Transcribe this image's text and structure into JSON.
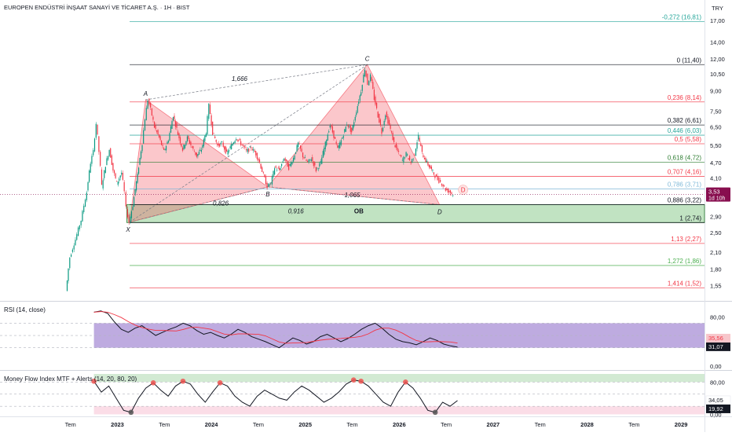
{
  "header": {
    "title": "EUROPEN ENDÜSTRİ İNŞAAT SANAYİ VE TİCARET A.Ş. · 1H · BIST",
    "currency": "TRY"
  },
  "chart_data": [
    {
      "type": "candlestick",
      "scale": "log",
      "ylim": [
        1.4,
        18.5
      ],
      "y_ticks": [
        "17,00",
        "14,00",
        "12,00",
        "10,50",
        "9,00",
        "7,50",
        "6,50",
        "5,50",
        "4,70",
        "4,10",
        "3,50",
        "2,90",
        "2,50",
        "2,10",
        "1,80",
        "1,55"
      ],
      "y_tick_values": [
        17.0,
        14.0,
        12.0,
        10.5,
        9.0,
        7.5,
        6.5,
        5.5,
        4.7,
        4.1,
        3.5,
        2.9,
        2.5,
        2.1,
        1.8,
        1.55
      ],
      "x_ticks": [
        "Tem",
        "2023",
        "Tem",
        "2024",
        "Tem",
        "2025",
        "Tem",
        "2026",
        "Tem",
        "2027",
        "Tem",
        "2028",
        "Tem",
        "2029"
      ],
      "x_tick_values": [
        2022.5,
        2023.0,
        2023.5,
        2024.0,
        2024.5,
        2025.0,
        2025.5,
        2026.0,
        2026.5,
        2027.0,
        2027.5,
        2028.0,
        2028.5,
        2029.0
      ],
      "last_price": "3,53",
      "last_price_value": 3.53,
      "countdown": "1d 10h",
      "price_path": [
        [
          2022.46,
          1.48
        ],
        [
          2022.47,
          1.62
        ],
        [
          2022.5,
          2.0
        ],
        [
          2022.56,
          2.35
        ],
        [
          2022.62,
          2.8
        ],
        [
          2022.68,
          3.6
        ],
        [
          2022.72,
          4.7
        ],
        [
          2022.75,
          5.2
        ],
        [
          2022.78,
          6.7
        ],
        [
          2022.81,
          5.2
        ],
        [
          2022.84,
          3.8
        ],
        [
          2022.88,
          4.6
        ],
        [
          2022.92,
          5.3
        ],
        [
          2022.96,
          4.4
        ],
        [
          2023.0,
          3.9
        ],
        [
          2023.05,
          4.3
        ],
        [
          2023.08,
          3.6
        ],
        [
          2023.1,
          3.1
        ],
        [
          2023.13,
          2.75
        ],
        [
          2023.17,
          3.2
        ],
        [
          2023.22,
          4.2
        ],
        [
          2023.27,
          5.6
        ],
        [
          2023.3,
          7.0
        ],
        [
          2023.33,
          8.3
        ],
        [
          2023.36,
          7.6
        ],
        [
          2023.4,
          6.5
        ],
        [
          2023.45,
          5.9
        ],
        [
          2023.5,
          5.2
        ],
        [
          2023.55,
          5.8
        ],
        [
          2023.6,
          7.2
        ],
        [
          2023.65,
          6.1
        ],
        [
          2023.7,
          5.3
        ],
        [
          2023.75,
          5.9
        ],
        [
          2023.8,
          5.4
        ],
        [
          2023.85,
          5.0
        ],
        [
          2023.9,
          5.3
        ],
        [
          2023.95,
          6.2
        ],
        [
          2023.98,
          7.9
        ],
        [
          2024.02,
          6.2
        ],
        [
          2024.07,
          5.5
        ],
        [
          2024.12,
          5.6
        ],
        [
          2024.17,
          5.1
        ],
        [
          2024.22,
          5.5
        ],
        [
          2024.27,
          5.9
        ],
        [
          2024.32,
          5.6
        ],
        [
          2024.38,
          5.2
        ],
        [
          2024.43,
          5.4
        ],
        [
          2024.48,
          5.1
        ],
        [
          2024.52,
          4.7
        ],
        [
          2024.56,
          4.2
        ],
        [
          2024.6,
          3.8
        ],
        [
          2024.64,
          3.9
        ],
        [
          2024.68,
          4.5
        ],
        [
          2024.73,
          4.4
        ],
        [
          2024.78,
          4.9
        ],
        [
          2024.83,
          4.5
        ],
        [
          2024.88,
          4.9
        ],
        [
          2024.93,
          5.6
        ],
        [
          2024.98,
          5.0
        ],
        [
          2025.03,
          4.7
        ],
        [
          2025.07,
          4.9
        ],
        [
          2025.12,
          4.4
        ],
        [
          2025.17,
          4.7
        ],
        [
          2025.22,
          5.6
        ],
        [
          2025.27,
          6.6
        ],
        [
          2025.31,
          6.0
        ],
        [
          2025.35,
          5.3
        ],
        [
          2025.4,
          5.9
        ],
        [
          2025.45,
          6.7
        ],
        [
          2025.5,
          6.2
        ],
        [
          2025.55,
          7.5
        ],
        [
          2025.6,
          9.0
        ],
        [
          2025.64,
          11.0
        ],
        [
          2025.67,
          9.6
        ],
        [
          2025.7,
          10.3
        ],
        [
          2025.74,
          8.4
        ],
        [
          2025.78,
          7.2
        ],
        [
          2025.82,
          6.2
        ],
        [
          2025.86,
          7.3
        ],
        [
          2025.9,
          6.6
        ],
        [
          2025.95,
          5.6
        ],
        [
          2026.0,
          5.1
        ],
        [
          2026.04,
          4.8
        ],
        [
          2026.08,
          5.1
        ],
        [
          2026.13,
          4.7
        ],
        [
          2026.17,
          5.1
        ],
        [
          2026.21,
          6.0
        ],
        [
          2026.25,
          5.1
        ],
        [
          2026.3,
          4.7
        ],
        [
          2026.35,
          4.4
        ],
        [
          2026.4,
          4.1
        ],
        [
          2026.46,
          3.9
        ],
        [
          2026.5,
          3.7
        ],
        [
          2026.55,
          3.6
        ],
        [
          2026.58,
          3.53
        ]
      ],
      "harmonic_points": [
        {
          "name": "X",
          "x": 2023.13,
          "y": 2.75
        },
        {
          "name": "A",
          "x": 2023.3,
          "y": 8.3
        },
        {
          "name": "B",
          "x": 2024.6,
          "y": 3.78
        },
        {
          "name": "C",
          "x": 2025.66,
          "y": 11.4
        },
        {
          "name": "D",
          "x": 2026.43,
          "y": 3.22
        }
      ],
      "harmonic_end_label": "D",
      "ratio_labels": [
        {
          "text": "1,666",
          "x": 2024.3,
          "y": 9.85
        },
        {
          "text": "0,826",
          "x": 2024.1,
          "y": 3.2
        },
        {
          "text": "0,916",
          "x": 2024.9,
          "y": 2.98
        },
        {
          "text": "1,065",
          "x": 2025.5,
          "y": 3.45
        },
        {
          "text": "OB",
          "x": 2025.57,
          "y": 2.98
        }
      ],
      "fib_levels": [
        {
          "label": "-0,272 (16,81)",
          "value": 16.81,
          "color": "#26a69a"
        },
        {
          "label": "0 (11,40)",
          "value": 11.4,
          "color": "#131722"
        },
        {
          "label": "0,236 (8,14)",
          "value": 8.14,
          "color": "#f23645"
        },
        {
          "label": "0,382 (6,61)",
          "value": 6.61,
          "color": "#131722"
        },
        {
          "label": "0,446 (6,03)",
          "value": 6.03,
          "color": "#26a69a"
        },
        {
          "label": "0,5 (5,58)",
          "value": 5.58,
          "color": "#f23645"
        },
        {
          "label": "0,618 (4,72)",
          "value": 4.72,
          "color": "#2e7d32"
        },
        {
          "label": "0,707 (4,16)",
          "value": 4.16,
          "color": "#f23645"
        },
        {
          "label": "0,786 (3,71)",
          "value": 3.71,
          "color": "#7fb9d8"
        },
        {
          "label": "0,886 (3,22)",
          "value": 3.22,
          "color": "#131722"
        },
        {
          "label": "1 (2,74)",
          "value": 2.74,
          "color": "#131722"
        },
        {
          "label": "1,13 (2,27)",
          "value": 2.27,
          "color": "#f23645"
        },
        {
          "label": "1,272 (1,86)",
          "value": 1.86,
          "color": "#4caf50"
        },
        {
          "label": "1,414 (1,52)",
          "value": 1.52,
          "color": "#f23645"
        }
      ],
      "order_block": {
        "top": 3.22,
        "bottom": 2.74,
        "color": "#4caf50"
      }
    },
    {
      "type": "line",
      "title": "RSI (14, close)",
      "ylim": [
        -5,
        100
      ],
      "y_ticks": [
        "80,00",
        "0,00"
      ],
      "y_tick_values": [
        80,
        0
      ],
      "bands": [
        70,
        30
      ],
      "last_value": "31,07",
      "ma_last_value": "35,56",
      "values": [
        88,
        90,
        86,
        72,
        60,
        55,
        62,
        66,
        58,
        50,
        55,
        60,
        64,
        70,
        66,
        58,
        52,
        55,
        50,
        46,
        52,
        60,
        55,
        48,
        44,
        40,
        35,
        30,
        38,
        46,
        42,
        36,
        40,
        48,
        52,
        46,
        40,
        45,
        52,
        60,
        66,
        70,
        62,
        52,
        44,
        40,
        38,
        35,
        40,
        46,
        42,
        36,
        33,
        31
      ]
    },
    {
      "type": "line",
      "title": "Money Flow Index MTF + Alerts (14, 20, 80, 20)",
      "ylim": [
        -5,
        100
      ],
      "y_ticks": [
        "80,00",
        "0,00"
      ],
      "y_tick_values": [
        80,
        0
      ],
      "bands": [
        80,
        20
      ],
      "last_value": "34,05",
      "last_value_2": "19,92",
      "values": [
        82,
        55,
        70,
        40,
        10,
        5,
        40,
        65,
        78,
        60,
        45,
        70,
        82,
        75,
        50,
        30,
        55,
        78,
        70,
        45,
        30,
        20,
        45,
        60,
        50,
        40,
        35,
        55,
        70,
        60,
        45,
        30,
        40,
        55,
        75,
        85,
        82,
        70,
        50,
        30,
        20,
        55,
        80,
        65,
        40,
        10,
        5,
        30,
        20,
        34
      ]
    }
  ]
}
